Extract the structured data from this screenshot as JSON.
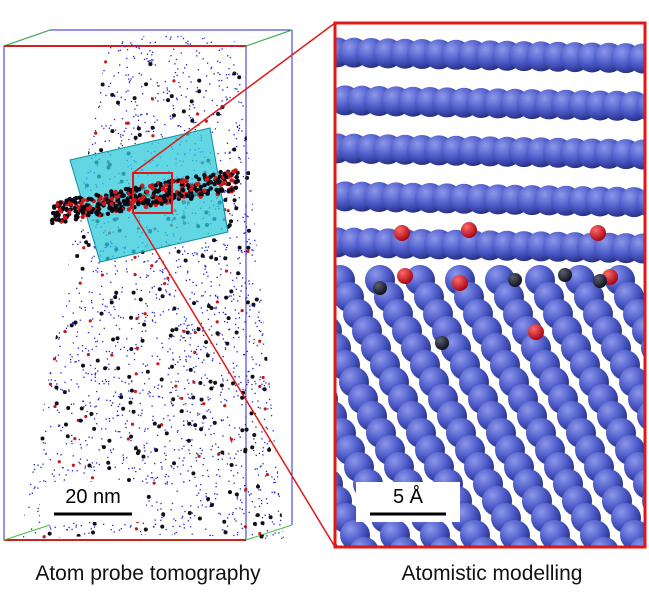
{
  "left_panel": {
    "scale_bar": "20 nm",
    "caption": "Atom probe tomography"
  },
  "right_panel": {
    "scale_bar": "5 Å",
    "caption": "Atomistic modelling"
  }
}
